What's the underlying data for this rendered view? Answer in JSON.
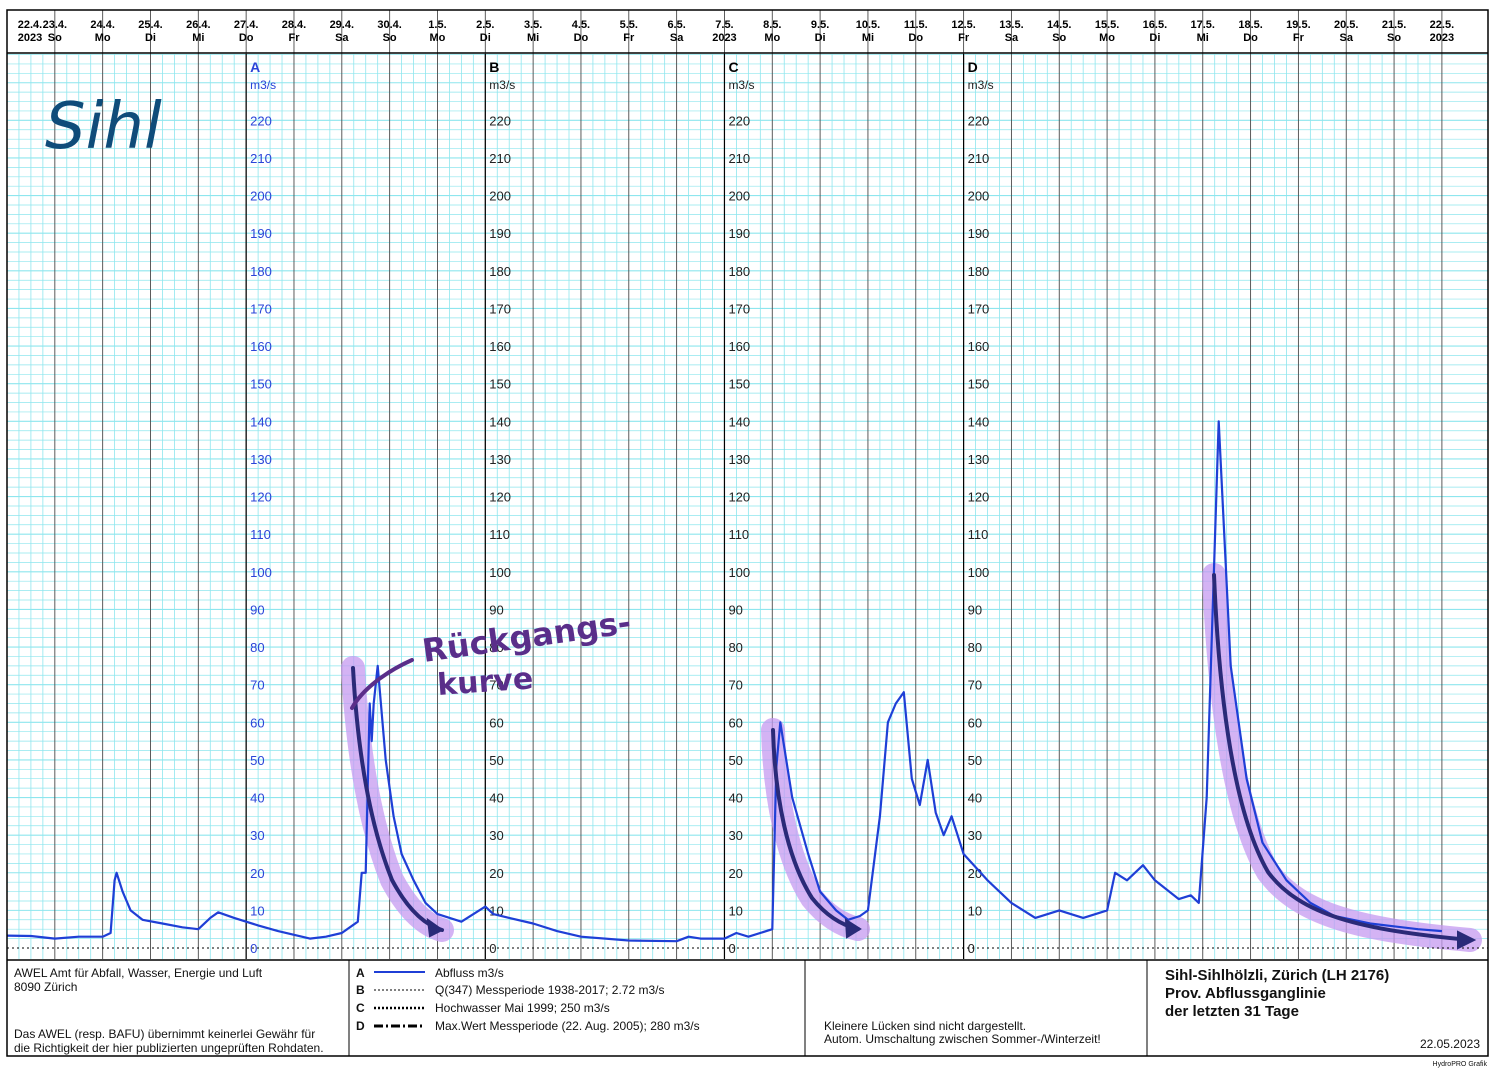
{
  "header": {
    "dates": [
      {
        "d": "22.4.",
        "w": "2023"
      },
      {
        "d": "23.4.",
        "w": "So"
      },
      {
        "d": "24.4.",
        "w": "Mo"
      },
      {
        "d": "25.4.",
        "w": "Di"
      },
      {
        "d": "26.4.",
        "w": "Mi"
      },
      {
        "d": "27.4.",
        "w": "Do"
      },
      {
        "d": "28.4.",
        "w": "Fr"
      },
      {
        "d": "29.4.",
        "w": "Sa"
      },
      {
        "d": "30.4.",
        "w": "So"
      },
      {
        "d": "1.5.",
        "w": "Mo"
      },
      {
        "d": "2.5.",
        "w": "Di"
      },
      {
        "d": "3.5.",
        "w": "Mi"
      },
      {
        "d": "4.5.",
        "w": "Do"
      },
      {
        "d": "5.5.",
        "w": "Fr"
      },
      {
        "d": "6.5.",
        "w": "Sa"
      },
      {
        "d": "7.5.",
        "w": "2023"
      },
      {
        "d": "8.5.",
        "w": "Mo"
      },
      {
        "d": "9.5.",
        "w": "Di"
      },
      {
        "d": "10.5.",
        "w": "Mi"
      },
      {
        "d": "11.5.",
        "w": "Do"
      },
      {
        "d": "12.5.",
        "w": "Fr"
      },
      {
        "d": "13.5.",
        "w": "Sa"
      },
      {
        "d": "14.5.",
        "w": "So"
      },
      {
        "d": "15.5.",
        "w": "Mo"
      },
      {
        "d": "16.5.",
        "w": "Di"
      },
      {
        "d": "17.5.",
        "w": "Mi"
      },
      {
        "d": "18.5.",
        "w": "Do"
      },
      {
        "d": "19.5.",
        "w": "Fr"
      },
      {
        "d": "20.5.",
        "w": "Sa"
      },
      {
        "d": "21.5.",
        "w": "So"
      },
      {
        "d": "22.5.",
        "w": "2023"
      }
    ]
  },
  "axes": [
    {
      "letter": "A",
      "unit": "m3/s",
      "colored": true
    },
    {
      "letter": "B",
      "unit": "m3/s",
      "colored": false
    },
    {
      "letter": "C",
      "unit": "m3/s",
      "colored": false
    },
    {
      "letter": "D",
      "unit": "m3/s",
      "colored": false
    }
  ],
  "annotations": {
    "river": "Sihl",
    "curve_line1": "Rückgangs-",
    "curve_line2": "kurve"
  },
  "footer": {
    "org_line1": "AWEL  Amt für Abfall, Wasser, Energie und Luft",
    "org_line2": "8090 Zürich",
    "disclaimer_line1": "Das AWEL (resp. BAFU) übernimmt keinerlei Gewähr für",
    "disclaimer_line2": "die Richtigkeit der hier publizierten ungeprüften Rohdaten.",
    "legend": [
      {
        "key": "A",
        "text": "Abfluss m3/s"
      },
      {
        "key": "B",
        "text": "Q(347) Messperiode 1938-2017;  2.72 m3/s"
      },
      {
        "key": "C",
        "text": "Hochwasser Mai 1999;  250 m3/s"
      },
      {
        "key": "D",
        "text": "Max.Wert Messperiode (22. Aug. 2005); 280 m3/s"
      }
    ],
    "note_line1": "Kleinere Lücken sind nicht dargestellt.",
    "note_line2": "Autom. Umschaltung zwischen Sommer-/Winterzeit!",
    "station_line1": "Sihl-Sihlhölzli, Zürich (LH 2176)",
    "station_line2": "Prov. Abflussganglinie",
    "station_line3": "der letzten 31 Tage",
    "date": "22.05.2023",
    "software": "HydroPRO Grafik"
  },
  "colors": {
    "discharge": "#1f3fd6",
    "grid_minor": "#8ee6ee",
    "highlight": "#c59af0",
    "arrow": "#2a2a78",
    "handwriting": "#5a2e8a",
    "river_label": "#0f4c7a"
  },
  "chart_data": {
    "type": "line",
    "x_range": [
      "2023-04-22",
      "2023-05-22"
    ],
    "y_range": [
      0,
      230
    ],
    "y_ticks": [
      0,
      10,
      20,
      30,
      40,
      50,
      60,
      70,
      80,
      90,
      100,
      110,
      120,
      130,
      140,
      150,
      160,
      170,
      180,
      190,
      200,
      210,
      220
    ],
    "series": [
      {
        "name": "Abfluss m3/s",
        "points": [
          [
            "2023-04-22T00:00",
            3.3
          ],
          [
            "2023-04-22T12:00",
            3.2
          ],
          [
            "2023-04-23T00:00",
            2.5
          ],
          [
            "2023-04-23T12:00",
            3.0
          ],
          [
            "2023-04-24T00:00",
            3.0
          ],
          [
            "2023-04-24T04:00",
            4.0
          ],
          [
            "2023-04-24T06:00",
            18.0
          ],
          [
            "2023-04-24T07:00",
            20.0
          ],
          [
            "2023-04-24T10:00",
            15.0
          ],
          [
            "2023-04-24T14:00",
            10.0
          ],
          [
            "2023-04-24T20:00",
            7.5
          ],
          [
            "2023-04-25T06:00",
            6.5
          ],
          [
            "2023-04-25T16:00",
            5.5
          ],
          [
            "2023-04-26T00:00",
            5.0
          ],
          [
            "2023-04-26T06:00",
            8.0
          ],
          [
            "2023-04-26T10:00",
            9.5
          ],
          [
            "2023-04-26T18:00",
            8.0
          ],
          [
            "2023-04-27T06:00",
            6.0
          ],
          [
            "2023-04-27T16:00",
            4.5
          ],
          [
            "2023-04-28T00:00",
            3.5
          ],
          [
            "2023-04-28T08:00",
            2.5
          ],
          [
            "2023-04-28T16:00",
            3.0
          ],
          [
            "2023-04-29T00:00",
            4.0
          ],
          [
            "2023-04-29T08:00",
            7.0
          ],
          [
            "2023-04-29T10:00",
            20.0
          ],
          [
            "2023-04-29T12:00",
            20.0
          ],
          [
            "2023-04-29T14:00",
            65.0
          ],
          [
            "2023-04-29T15:00",
            55.0
          ],
          [
            "2023-04-29T16:00",
            65.0
          ],
          [
            "2023-04-29T18:00",
            75.0
          ],
          [
            "2023-04-29T22:00",
            50.0
          ],
          [
            "2023-04-30T02:00",
            35.0
          ],
          [
            "2023-04-30T06:00",
            25.0
          ],
          [
            "2023-04-30T12:00",
            18.0
          ],
          [
            "2023-04-30T18:00",
            12.0
          ],
          [
            "2023-05-01T00:00",
            9.0
          ],
          [
            "2023-05-01T12:00",
            7.0
          ],
          [
            "2023-05-02T00:00",
            11.0
          ],
          [
            "2023-05-02T04:00",
            9.0
          ],
          [
            "2023-05-02T12:00",
            8.0
          ],
          [
            "2023-05-03T00:00",
            6.5
          ],
          [
            "2023-05-03T12:00",
            4.5
          ],
          [
            "2023-05-04T00:00",
            3.0
          ],
          [
            "2023-05-05T00:00",
            2.0
          ],
          [
            "2023-05-06T00:00",
            1.8
          ],
          [
            "2023-05-06T06:00",
            3.0
          ],
          [
            "2023-05-06T12:00",
            2.5
          ],
          [
            "2023-05-07T00:00",
            2.5
          ],
          [
            "2023-05-07T06:00",
            4.0
          ],
          [
            "2023-05-07T12:00",
            3.0
          ],
          [
            "2023-05-08T00:00",
            5.0
          ],
          [
            "2023-05-08T02:00",
            48.0
          ],
          [
            "2023-05-08T04:00",
            60.0
          ],
          [
            "2023-05-08T10:00",
            40.0
          ],
          [
            "2023-05-08T18:00",
            25.0
          ],
          [
            "2023-05-09T00:00",
            15.0
          ],
          [
            "2023-05-09T08:00",
            10.0
          ],
          [
            "2023-05-09T14:00",
            7.5
          ],
          [
            "2023-05-09T20:00",
            8.5
          ],
          [
            "2023-05-10T00:00",
            10.0
          ],
          [
            "2023-05-10T06:00",
            35.0
          ],
          [
            "2023-05-10T10:00",
            60.0
          ],
          [
            "2023-05-10T14:00",
            65.0
          ],
          [
            "2023-05-10T18:00",
            68.0
          ],
          [
            "2023-05-10T22:00",
            45.0
          ],
          [
            "2023-05-11T02:00",
            38.0
          ],
          [
            "2023-05-11T06:00",
            50.0
          ],
          [
            "2023-05-11T10:00",
            36.0
          ],
          [
            "2023-05-11T14:00",
            30.0
          ],
          [
            "2023-05-11T18:00",
            35.0
          ],
          [
            "2023-05-12T00:00",
            25.0
          ],
          [
            "2023-05-12T12:00",
            18.0
          ],
          [
            "2023-05-13T00:00",
            12.0
          ],
          [
            "2023-05-13T12:00",
            8.0
          ],
          [
            "2023-05-14T00:00",
            10.0
          ],
          [
            "2023-05-14T12:00",
            8.0
          ],
          [
            "2023-05-15T00:00",
            10.0
          ],
          [
            "2023-05-15T04:00",
            20.0
          ],
          [
            "2023-05-15T10:00",
            18.0
          ],
          [
            "2023-05-15T18:00",
            22.0
          ],
          [
            "2023-05-16T00:00",
            18.0
          ],
          [
            "2023-05-16T12:00",
            13.0
          ],
          [
            "2023-05-16T18:00",
            14.0
          ],
          [
            "2023-05-16T22:00",
            12.0
          ],
          [
            "2023-05-17T02:00",
            40.0
          ],
          [
            "2023-05-17T08:00",
            140.0
          ],
          [
            "2023-05-17T14:00",
            75.0
          ],
          [
            "2023-05-17T22:00",
            45.0
          ],
          [
            "2023-05-18T06:00",
            28.0
          ],
          [
            "2023-05-18T18:00",
            18.0
          ],
          [
            "2023-05-19T06:00",
            12.0
          ],
          [
            "2023-05-19T18:00",
            8.5
          ],
          [
            "2023-05-20T12:00",
            6.5
          ],
          [
            "2023-05-21T12:00",
            5.0
          ],
          [
            "2023-05-22T00:00",
            4.5
          ]
        ]
      }
    ]
  }
}
